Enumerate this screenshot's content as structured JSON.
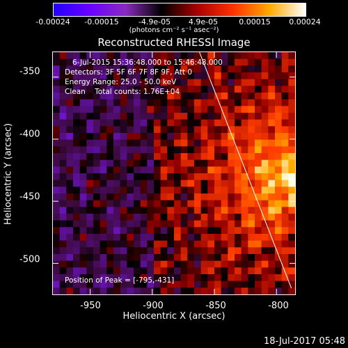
{
  "colorbar": {
    "ticks": [
      "-0.00024",
      "-0.00015",
      "-4.9e-05",
      "4.9e-05",
      "0.00015",
      "0.00024"
    ],
    "units": "(photons cm⁻² s⁻¹ asec⁻²)",
    "colors": [
      "#2200ff",
      "#6a00ff",
      "#8a2bbf",
      "#000000",
      "#aa0000",
      "#ff3300",
      "#ffaa00",
      "#ffffff"
    ]
  },
  "annotations": {
    "time": "6-Jul-2015 15:36:48.000 to 15:46:48.000",
    "detectors": "Detectors: 3F 5F 6F 7F 8F 9F, Att 0",
    "energy": "Energy Range: 25.0 - 50.0 keV",
    "clean": "Clean    Total counts: 1.76E+04",
    "peak": "Position of Peak = [-795,-431]"
  },
  "footer": "18-Jul-2017 05:48",
  "chart_data": {
    "type": "heatmap",
    "title": "Reconstructed RHESSI Image",
    "xlabel": "Heliocentric X (arcsec)",
    "ylabel": "Heliocentric Y (arcsec)",
    "xlim": [
      -980,
      -785
    ],
    "ylim": [
      -525,
      -330
    ],
    "x_ticks": [
      -950,
      -900,
      -850,
      -800
    ],
    "y_ticks": [
      -350,
      -400,
      -450,
      -500
    ],
    "x_tick_labels": [
      "-950",
      "-900",
      "-850",
      "-800"
    ],
    "y_tick_labels": [
      "-350",
      "-400",
      "-450",
      "-500"
    ],
    "value_range": [
      -0.00024,
      0.00024
    ],
    "peak_position": [
      -795,
      -431
    ],
    "limb_line": {
      "x": [
        -862,
        -788
      ],
      "y": [
        -330,
        -520
      ]
    },
    "grid": false
  }
}
